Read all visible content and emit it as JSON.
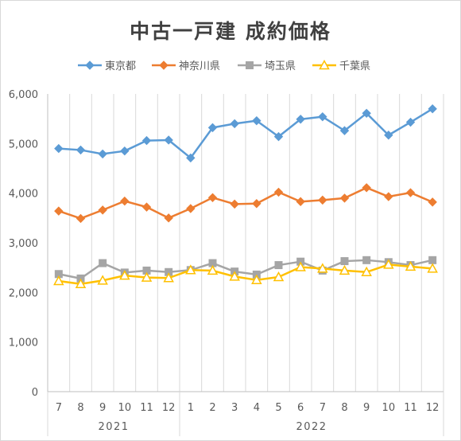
{
  "chart_data": {
    "type": "line",
    "title": "中古一戸建 成約価格",
    "months": [
      "7",
      "8",
      "9",
      "10",
      "11",
      "12",
      "1",
      "2",
      "3",
      "4",
      "5",
      "6",
      "7",
      "8",
      "9",
      "10",
      "11",
      "12"
    ],
    "years": [
      {
        "label": "2021",
        "span": 6
      },
      {
        "label": "2022",
        "span": 12
      }
    ],
    "ylim": [
      0,
      6000
    ],
    "yticks": [
      "0",
      "1,000",
      "2,000",
      "3,000",
      "4,000",
      "5,000",
      "6,000"
    ],
    "ytick_values": [
      0,
      1000,
      2000,
      3000,
      4000,
      5000,
      6000
    ],
    "legend_position": "top",
    "grid": "vertical",
    "series": [
      {
        "name": "東京都",
        "color": "#5b9bd5",
        "marker": "diamond",
        "values": [
          4900,
          4870,
          4790,
          4850,
          5060,
          5070,
          4710,
          5320,
          5400,
          5460,
          5140,
          5490,
          5540,
          5260,
          5610,
          5170,
          5430,
          5700
        ]
      },
      {
        "name": "神奈川県",
        "color": "#ed7d31",
        "marker": "diamond",
        "values": [
          3640,
          3490,
          3660,
          3840,
          3720,
          3500,
          3690,
          3910,
          3780,
          3790,
          4020,
          3830,
          3860,
          3900,
          4110,
          3930,
          4010,
          3820
        ]
      },
      {
        "name": "埼玉県",
        "color": "#a5a5a5",
        "marker": "square",
        "values": [
          2370,
          2280,
          2590,
          2400,
          2440,
          2410,
          2450,
          2590,
          2420,
          2360,
          2550,
          2620,
          2440,
          2630,
          2650,
          2610,
          2550,
          2650
        ]
      },
      {
        "name": "千葉県",
        "color": "#ffc000",
        "marker": "triangle",
        "values": [
          2230,
          2170,
          2240,
          2340,
          2300,
          2290,
          2450,
          2440,
          2320,
          2250,
          2310,
          2510,
          2480,
          2440,
          2410,
          2560,
          2520,
          2480
        ]
      }
    ]
  }
}
